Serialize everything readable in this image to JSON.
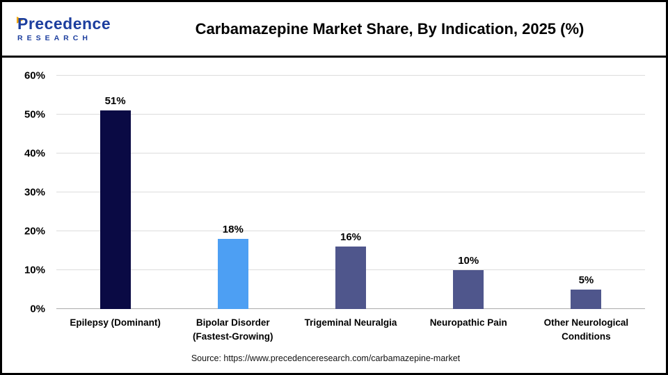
{
  "header": {
    "title": "Carbamazepine Market Share, By Indication, 2025 (%)",
    "logo": {
      "wordmark": "Precedence",
      "subtext": "RESEARCH"
    }
  },
  "chart_data": {
    "type": "bar",
    "title": "Carbamazepine Market Share, By Indication, 2025 (%)",
    "categories": [
      "Epilepsy (Dominant)",
      "Bipolar Disorder (Fastest-Growing)",
      "Trigeminal Neuralgia",
      "Neuropathic Pain",
      "Other Neurological Conditions"
    ],
    "values": [
      51,
      18,
      16,
      10,
      5
    ],
    "value_labels": [
      "51%",
      "18%",
      "16%",
      "10%",
      "5%"
    ],
    "bar_colors": [
      "#0a0a44",
      "#4d9ff3",
      "#4f568c",
      "#4f568c",
      "#4f568c"
    ],
    "ylim": [
      0,
      60
    ],
    "yticks": [
      0,
      10,
      20,
      30,
      40,
      50,
      60
    ],
    "ytick_suffix": "%",
    "grid": true,
    "legend_position": "none",
    "xlabel": "",
    "ylabel": ""
  },
  "footer": {
    "source": "Source: https://www.precedenceresearch.com/carbamazepine-market"
  },
  "colors": {
    "logo_blue": "#1c3e9e",
    "logo_gold": "#f0a400",
    "title_text": "#000000",
    "gridline": "#dcdcdc",
    "axis_line": "#ababab"
  }
}
